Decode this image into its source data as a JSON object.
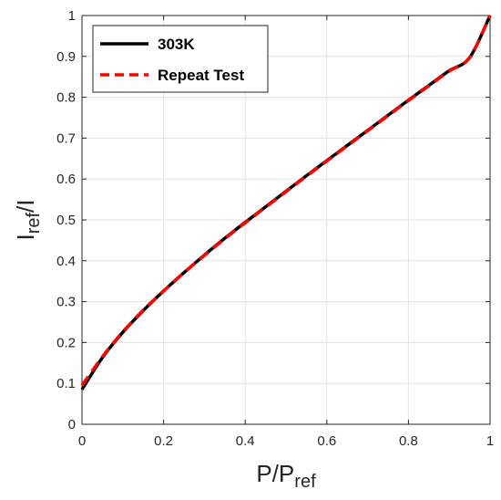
{
  "chart_data": {
    "type": "line",
    "title": "",
    "xlabel": "P/P",
    "xlabel_sub": "ref",
    "ylabel": "I",
    "ylabel_sub": "ref",
    "ylabel_tail": "/I",
    "xlim": [
      0,
      1
    ],
    "ylim": [
      0,
      1
    ],
    "xticks": [
      0,
      0.2,
      0.4,
      0.6,
      0.8,
      1
    ],
    "xtick_labels": [
      "0",
      "0.2",
      "0.4",
      "0.6",
      "0.8",
      "1"
    ],
    "yticks": [
      0,
      0.1,
      0.2,
      0.3,
      0.4,
      0.5,
      0.6,
      0.7,
      0.8,
      0.9,
      1
    ],
    "ytick_labels": [
      "0",
      "0.1",
      "0.2",
      "0.3",
      "0.4",
      "0.5",
      "0.6",
      "0.7",
      "0.8",
      "0.9",
      "1"
    ],
    "grid": true,
    "legend_position": "top-left",
    "x": [
      0,
      0.05,
      0.1,
      0.15,
      0.2,
      0.25,
      0.3,
      0.35,
      0.4,
      0.45,
      0.5,
      0.55,
      0.6,
      0.65,
      0.7,
      0.75,
      0.8,
      0.85,
      0.9,
      0.95,
      1
    ],
    "series": [
      {
        "name": "303K",
        "color": "#000000",
        "style": "solid",
        "values": [
          0.085,
          0.163,
          0.225,
          0.278,
          0.326,
          0.371,
          0.414,
          0.455,
          0.494,
          0.532,
          0.57,
          0.608,
          0.645,
          0.682,
          0.719,
          0.756,
          0.793,
          0.829,
          0.865,
          0.897,
          1.0
        ]
      },
      {
        "name": "Repeat Test",
        "color": "#ff0000",
        "style": "dashed",
        "values": [
          0.095,
          0.165,
          0.226,
          0.279,
          0.326,
          0.371,
          0.413,
          0.454,
          0.493,
          0.531,
          0.569,
          0.607,
          0.644,
          0.681,
          0.718,
          0.755,
          0.792,
          0.828,
          0.864,
          0.897,
          1.0
        ]
      }
    ]
  }
}
